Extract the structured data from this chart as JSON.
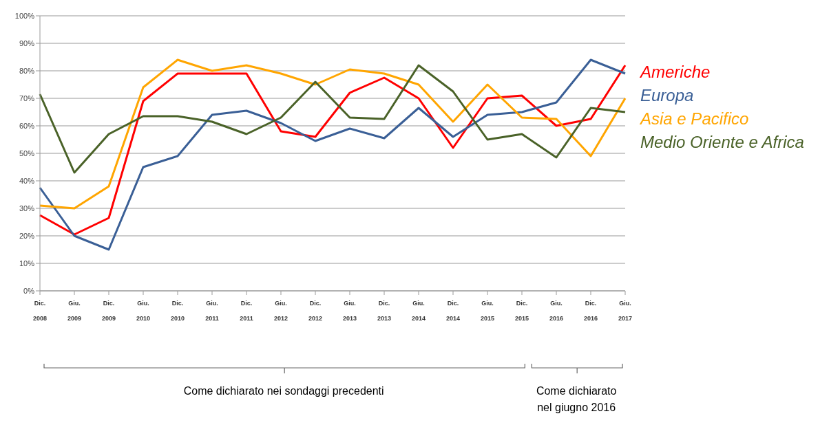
{
  "chart_data": {
    "type": "line",
    "categories": [
      "Dic. 2008",
      "Giu. 2009",
      "Dic. 2009",
      "Giu. 2010",
      "Dic. 2010",
      "Giu. 2011",
      "Dic. 2011",
      "Giu. 2012",
      "Dic. 2012",
      "Giu. 2013",
      "Dic. 2013",
      "Giu. 2014",
      "Dic. 2014",
      "Giu. 2015",
      "Dic. 2015",
      "Giu. 2016",
      "Dic. 2016",
      "Giu. 2017"
    ],
    "series": [
      {
        "name": "Americhe",
        "color": "#ff0000",
        "values": [
          27.5,
          20.5,
          26.5,
          69,
          79,
          79,
          79,
          58,
          56,
          72,
          77.5,
          70,
          52,
          70,
          71,
          60,
          62.5,
          82
        ]
      },
      {
        "name": "Europa",
        "color": "#3a5f96",
        "values": [
          37.5,
          20,
          15,
          45,
          49,
          64,
          65.5,
          61,
          54.5,
          59,
          55.5,
          66.5,
          56,
          64,
          65,
          68.5,
          84,
          79
        ]
      },
      {
        "name": "Asia e Pacifico",
        "color": "#ffa500",
        "values": [
          31,
          30,
          38,
          74,
          84,
          80,
          82,
          79,
          75,
          80.5,
          79,
          75,
          61.5,
          75,
          63,
          62.5,
          49,
          70
        ]
      },
      {
        "name": "Medio Oriente e Africa",
        "color": "#4a6228",
        "values": [
          71.5,
          43,
          57,
          63.5,
          63.5,
          61.5,
          57,
          63,
          76,
          63,
          62.5,
          82,
          72.5,
          55,
          57,
          48.5,
          66.5,
          65
        ]
      }
    ],
    "ylim": [
      0,
      100
    ],
    "yticks": [
      {
        "value": 0,
        "label": "0%"
      },
      {
        "value": 10,
        "label": "10%"
      },
      {
        "value": 20,
        "label": "20%"
      },
      {
        "value": 30,
        "label": "30%"
      },
      {
        "value": 40,
        "label": "40%"
      },
      {
        "value": 50,
        "label": "50%"
      },
      {
        "value": 60,
        "label": "60%"
      },
      {
        "value": 70,
        "label": "70%"
      },
      {
        "value": 80,
        "label": "80%"
      },
      {
        "value": 90,
        "label": "90%"
      },
      {
        "value": 100,
        "label": "100%"
      }
    ],
    "grid": "y",
    "legend": "right",
    "marker": "none",
    "line_style": "solid",
    "annotations": [
      "Come dichiarato nei sondaggi precedenti",
      "Come dichiarato nel giugno 2016"
    ]
  }
}
